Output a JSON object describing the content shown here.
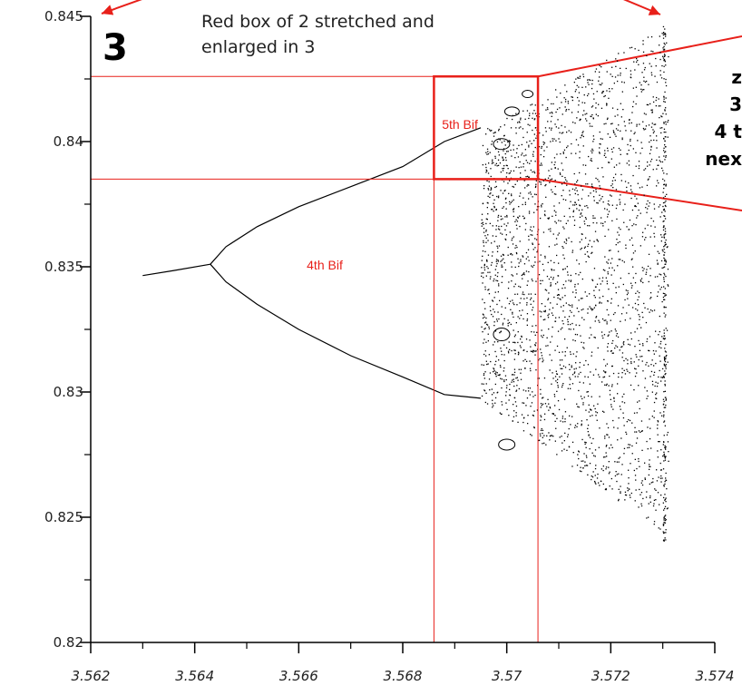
{
  "annotations": {
    "caption_line1": "Red box of 2 stretched and",
    "caption_line2": "enlarged in 3",
    "panel_number": "3",
    "side_line1": "z",
    "side_line2": "3",
    "side_line3": "4 t",
    "side_line4": "nex"
  },
  "colors": {
    "annotation_red": "#e8201a",
    "data_black": "#000000"
  },
  "chart_data": {
    "type": "scatter",
    "title": "",
    "xlabel": "",
    "ylabel": "",
    "xlim": [
      3.562,
      3.574
    ],
    "ylim": [
      0.82,
      0.845
    ],
    "grid": false,
    "x_ticks": [
      "3.562",
      "3.564",
      "3.566",
      "3.568",
      "3.57",
      "3.572",
      "3.574"
    ],
    "y_ticks": [
      "0.82",
      "0.825",
      "0.83",
      "0.835",
      "0.84",
      "0.845"
    ],
    "bifurcation_labels": [
      {
        "text": "4th Bif",
        "x": 3.5665,
        "y": 0.8349
      },
      {
        "text": "5th Bif",
        "x": 3.5691,
        "y": 0.8405
      }
    ],
    "series": [
      {
        "values": [
          [
            3.563,
            0.83465
          ],
          [
            3.5636,
            0.83485
          ],
          [
            3.5643,
            0.8351
          ]
        ]
      },
      {
        "values": [
          [
            3.5643,
            0.8351
          ],
          [
            3.5646,
            0.8358
          ],
          [
            3.5652,
            0.8366
          ],
          [
            3.566,
            0.8374
          ],
          [
            3.567,
            0.8382
          ],
          [
            3.568,
            0.839
          ],
          [
            3.5688,
            0.84
          ],
          [
            3.5695,
            0.84055
          ]
        ]
      },
      {
        "values": [
          [
            3.5643,
            0.8351
          ],
          [
            3.5646,
            0.8344
          ],
          [
            3.5652,
            0.8335
          ],
          [
            3.566,
            0.8325
          ],
          [
            3.567,
            0.83145
          ],
          [
            3.568,
            0.8306
          ],
          [
            3.5688,
            0.8299
          ],
          [
            3.5695,
            0.82975
          ]
        ]
      }
    ],
    "red_box": {
      "x": [
        3.5686,
        3.5706
      ],
      "y": [
        0.8385,
        0.8426
      ]
    },
    "chaotic_region_x": [
      3.5695,
      3.5731
    ]
  }
}
